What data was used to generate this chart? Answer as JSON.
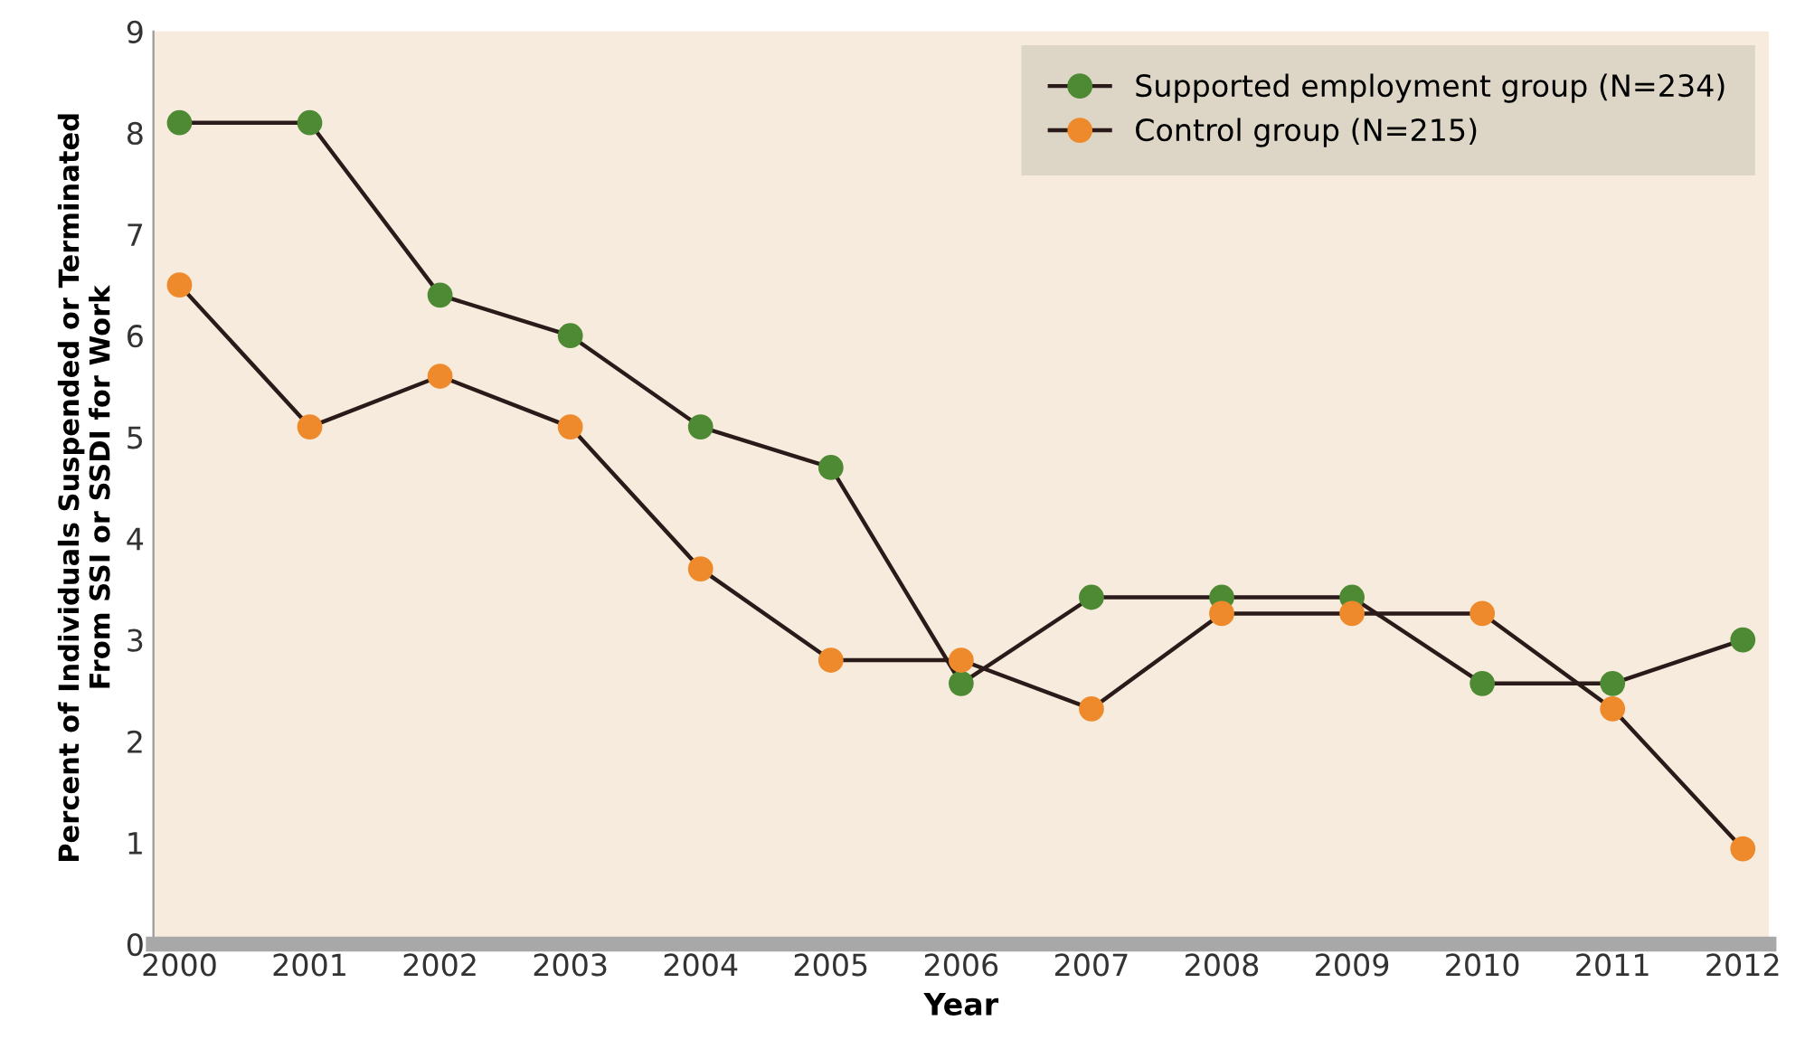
{
  "chart_data": {
    "type": "line",
    "xlabel": "Year",
    "ylabel": "Percent of Individuals Suspended or Terminated\nFrom SSI or SSDI for Work",
    "x": [
      2000,
      2001,
      2002,
      2003,
      2004,
      2005,
      2006,
      2007,
      2008,
      2009,
      2010,
      2011,
      2012
    ],
    "series": [
      {
        "name": "Supported employment group (N=234)",
        "color": "#4e8a34",
        "values": [
          8.1,
          8.1,
          6.4,
          6.0,
          5.1,
          4.7,
          2.57,
          3.42,
          3.42,
          3.42,
          2.57,
          2.57,
          3.0
        ]
      },
      {
        "name": "Control group (N=215)",
        "color": "#ee8a2b",
        "values": [
          6.5,
          5.1,
          5.6,
          5.1,
          3.7,
          2.8,
          2.8,
          2.32,
          3.26,
          3.26,
          3.26,
          2.32,
          0.94
        ]
      }
    ],
    "xlim": [
      1999.8,
      2012.2
    ],
    "xticks": [
      2000,
      2001,
      2002,
      2003,
      2004,
      2005,
      2006,
      2007,
      2008,
      2009,
      2010,
      2011,
      2012
    ],
    "ylim": [
      0,
      9
    ],
    "yticks": [
      0,
      1,
      2,
      3,
      4,
      5,
      6,
      7,
      8,
      9
    ],
    "grid": false,
    "legend": "top right",
    "marker": "circle",
    "line_style": "solid"
  }
}
